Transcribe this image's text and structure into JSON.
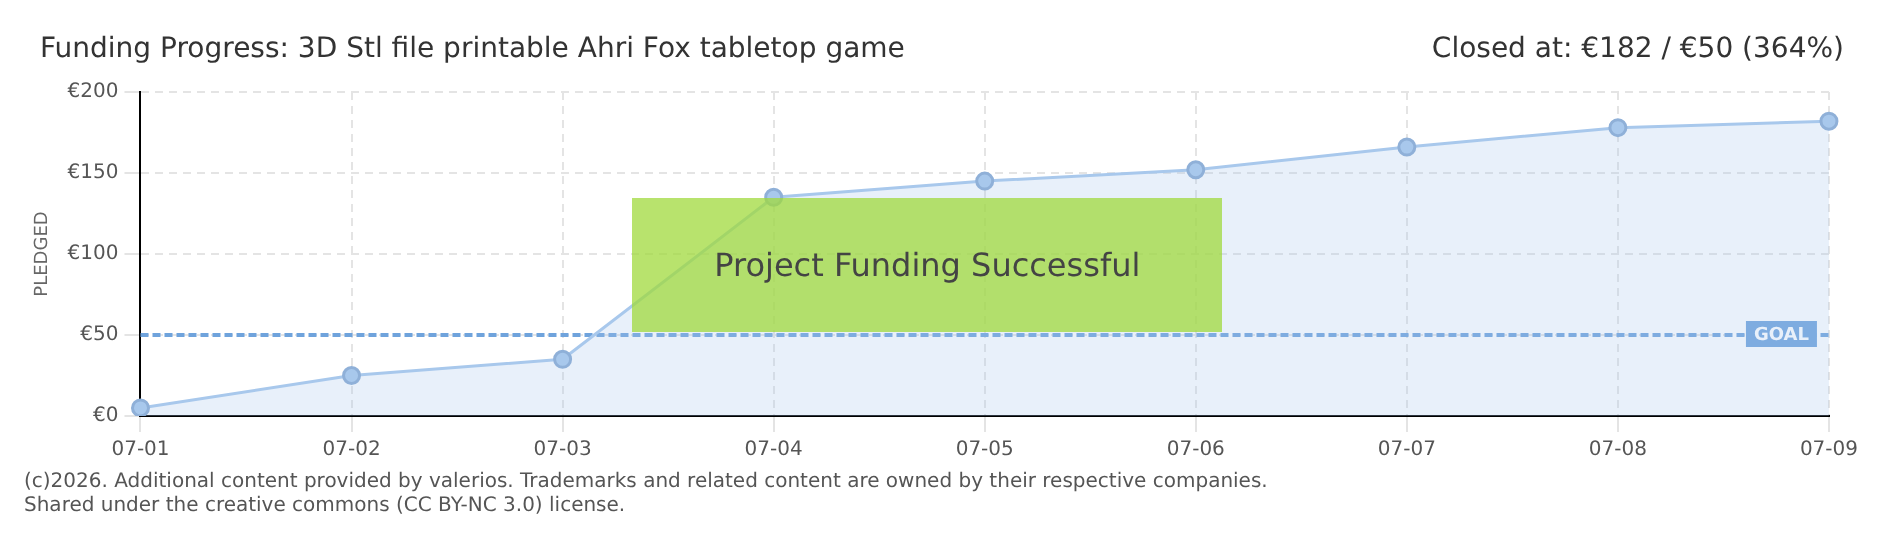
{
  "chart_data": {
    "type": "area",
    "title": "Funding Progress: 3D Stl file printable Ahri Fox tabletop game",
    "subtitle": "Closed at: €182 / €50 (364%)",
    "ylabel": "PLEDGED",
    "categories": [
      "07-01",
      "07-02",
      "07-03",
      "07-04",
      "07-05",
      "07-06",
      "07-07",
      "07-08",
      "07-09"
    ],
    "series": [
      {
        "color": "#a8c8ec",
        "values": [
          5,
          25,
          35,
          135,
          145,
          152,
          166,
          178,
          182
        ]
      }
    ],
    "ylim": [
      0,
      200
    ],
    "yticks": [
      {
        "value": 0,
        "label": "€0"
      },
      {
        "value": 50,
        "label": "€50"
      },
      {
        "value": 100,
        "label": "€100"
      },
      {
        "value": 150,
        "label": "€150"
      },
      {
        "value": 200,
        "label": "€200"
      }
    ],
    "grid": true,
    "legend": false,
    "marker": "circle",
    "ref_lines": [
      {
        "axis": "y",
        "value": 50,
        "label": "GOAL",
        "color": "#6fa3dc",
        "line_style": "dashed"
      }
    ],
    "annotations": [
      "Project Funding Successful",
      "(c)2026. Additional content provided by valerios. Trademarks and related content are owned by their respective companies.",
      "Shared under the creative commons (CC BY-NC 3.0) license."
    ]
  }
}
